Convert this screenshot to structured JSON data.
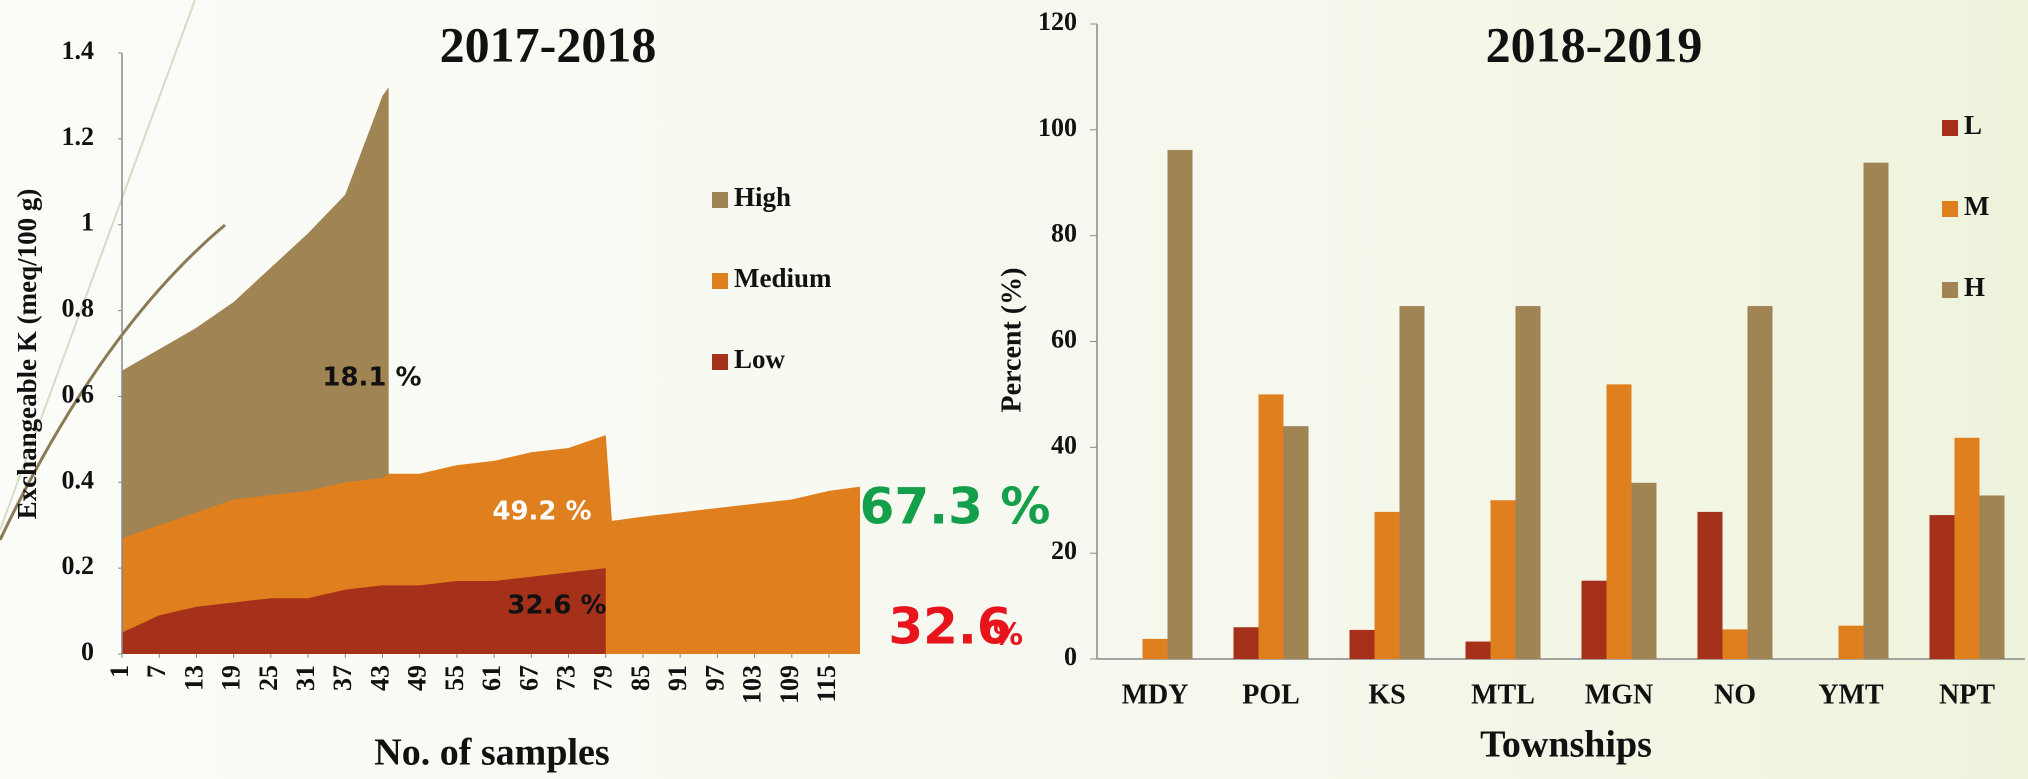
{
  "chart_data": [
    {
      "type": "area",
      "title": "2017-2018",
      "x_label": "No. of samples",
      "y_label": "Exchangeable K (meq/100 g)",
      "x": [
        1,
        7,
        13,
        19,
        25,
        31,
        37,
        43,
        44,
        49,
        55,
        61,
        67,
        73,
        79,
        80,
        85,
        91,
        97,
        103,
        109,
        115,
        120
      ],
      "series": [
        {
          "name": "High",
          "color": "#a08454",
          "values": [
            0.66,
            0.71,
            0.76,
            0.82,
            0.9,
            0.98,
            1.07,
            1.3,
            1.32,
            null,
            null,
            null,
            null,
            null,
            null,
            null,
            null,
            null,
            null,
            null,
            null,
            null,
            null
          ]
        },
        {
          "name": "Medium",
          "color": "#e07f1e",
          "values": [
            0.27,
            0.3,
            0.33,
            0.36,
            0.37,
            0.38,
            0.4,
            0.41,
            0.42,
            0.42,
            0.44,
            0.45,
            0.47,
            0.48,
            0.51,
            0.31,
            0.32,
            0.33,
            0.34,
            0.35,
            0.36,
            0.38,
            0.39
          ]
        },
        {
          "name": "Low",
          "color": "#a5311a",
          "values": [
            0.05,
            0.09,
            0.11,
            0.12,
            0.13,
            0.13,
            0.15,
            0.16,
            0.16,
            0.16,
            0.17,
            0.17,
            0.18,
            0.19,
            0.2,
            null,
            null,
            null,
            null,
            null,
            null,
            null,
            null
          ]
        }
      ],
      "xlim": [
        1,
        120
      ],
      "xticks": [
        1,
        7,
        13,
        19,
        25,
        31,
        37,
        43,
        49,
        55,
        61,
        67,
        73,
        79,
        85,
        91,
        97,
        103,
        109,
        115
      ],
      "ylim": [
        0,
        1.4
      ],
      "yticks": [
        0,
        0.2,
        0.4,
        0.6,
        0.8,
        1,
        1.2,
        1.4
      ],
      "annotations": [
        "18.1 %",
        "49.2 %",
        "32.6 %",
        "67.3 %",
        "32.6",
        "%"
      ]
    },
    {
      "type": "bar",
      "title": "2018-2019",
      "x_label": "Townships",
      "y_label": "Percent (%)",
      "categories": [
        "MDY",
        "POL",
        "KS",
        "MTL",
        "MGN",
        "NO",
        "YMT",
        "NPT"
      ],
      "series": [
        {
          "name": "L",
          "color": "#a5311a",
          "values": [
            0,
            6,
            5.5,
            3.3,
            14.8,
            27.8,
            0,
            27.2
          ]
        },
        {
          "name": "M",
          "color": "#e07f1e",
          "values": [
            3.8,
            50,
            27.8,
            30,
            51.9,
            5.6,
            6.3,
            41.8
          ]
        },
        {
          "name": "H",
          "color": "#a08454",
          "values": [
            96.2,
            44,
            66.7,
            66.7,
            33.3,
            66.7,
            93.8,
            30.9
          ]
        }
      ],
      "ylim": [
        0,
        120
      ],
      "yticks": [
        0,
        20,
        40,
        60,
        80,
        100,
        120
      ]
    }
  ]
}
